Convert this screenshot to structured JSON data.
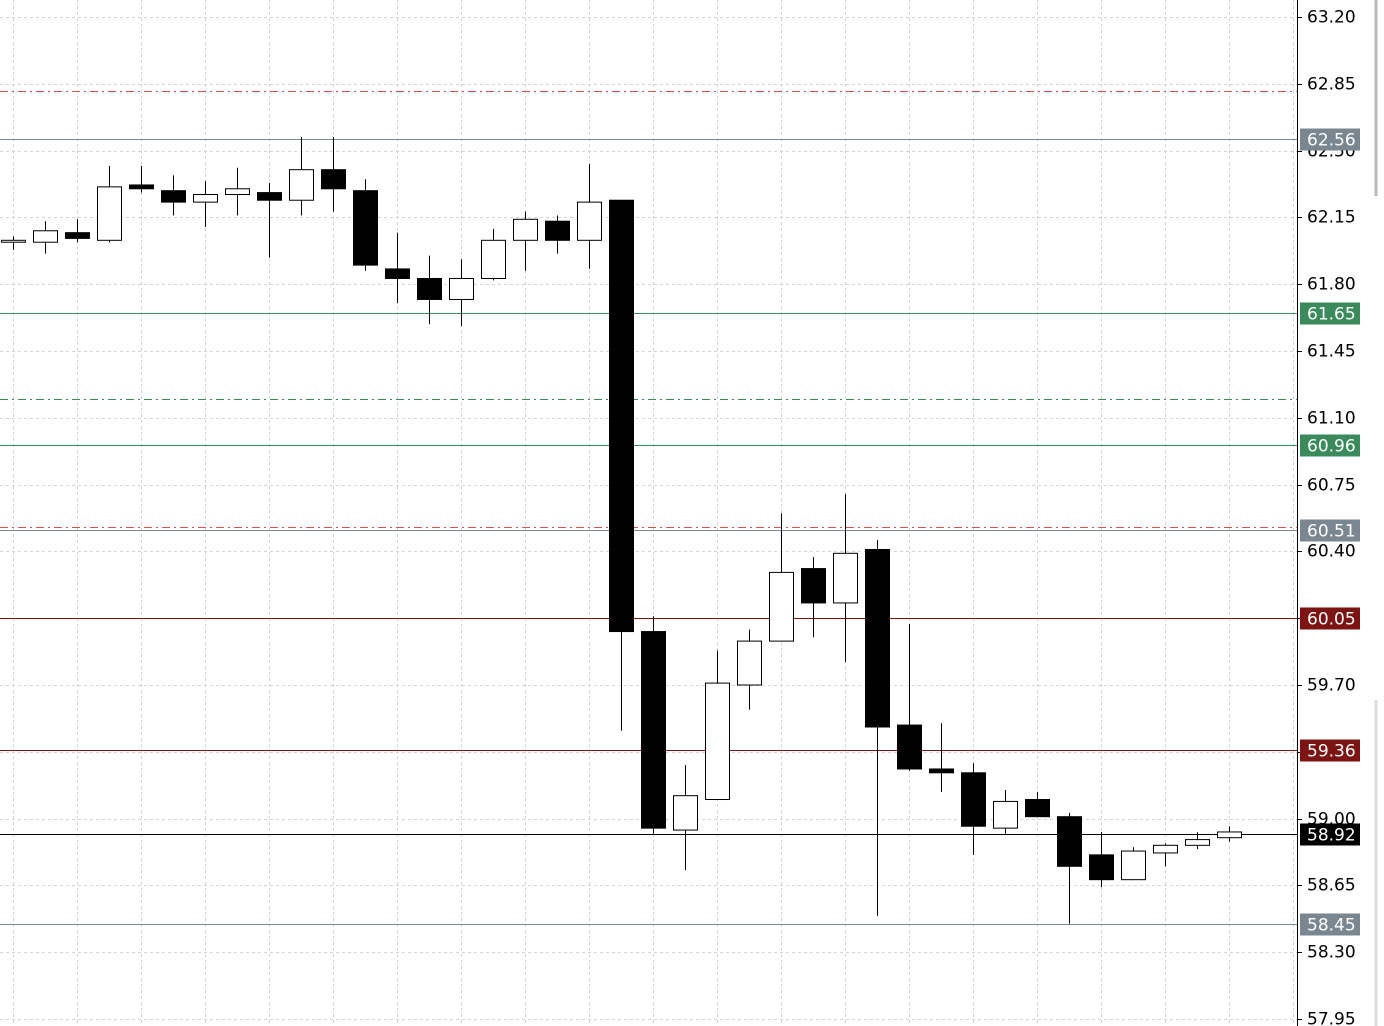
{
  "chart_data": {
    "type": "candlestick",
    "open": [
      62.02,
      62.02,
      62.07,
      62.03,
      62.32,
      62.29,
      62.23,
      62.27,
      62.28,
      62.24,
      62.4,
      62.29,
      61.88,
      61.83,
      61.72,
      61.83,
      62.03,
      62.13,
      62.03,
      62.24,
      59.98,
      58.94,
      59.1,
      59.7,
      59.93,
      60.31,
      60.13,
      60.41,
      59.49,
      59.26,
      59.24,
      58.95,
      59.1,
      59.01,
      58.81,
      58.68,
      58.82,
      58.86,
      58.9
    ],
    "high": [
      62.05,
      62.13,
      62.14,
      62.42,
      62.42,
      62.37,
      62.34,
      62.41,
      62.33,
      62.57,
      62.57,
      62.35,
      62.07,
      61.95,
      61.93,
      62.09,
      62.18,
      62.16,
      62.43,
      62.24,
      60.06,
      59.28,
      59.88,
      59.99,
      60.6,
      60.37,
      60.7,
      60.46,
      60.02,
      59.5,
      59.29,
      59.15,
      59.14,
      59.03,
      58.93,
      58.85,
      58.87,
      58.93,
      58.96
    ],
    "low": [
      61.98,
      61.96,
      62.02,
      62.02,
      62.28,
      62.16,
      62.1,
      62.16,
      61.94,
      62.16,
      62.18,
      61.87,
      61.7,
      61.59,
      61.58,
      61.82,
      61.87,
      61.96,
      61.88,
      59.46,
      58.92,
      58.73,
      59.1,
      59.57,
      59.93,
      59.95,
      59.82,
      58.49,
      59.25,
      59.14,
      58.81,
      58.92,
      59.01,
      58.45,
      58.64,
      58.68,
      58.75,
      58.84,
      58.88
    ],
    "close": [
      62.03,
      62.08,
      62.04,
      62.31,
      62.3,
      62.23,
      62.27,
      62.3,
      62.24,
      62.4,
      62.3,
      61.9,
      61.83,
      61.72,
      61.83,
      62.03,
      62.14,
      62.03,
      62.23,
      59.98,
      58.95,
      59.12,
      59.71,
      59.93,
      60.29,
      60.13,
      60.39,
      59.48,
      59.26,
      59.24,
      58.96,
      59.09,
      59.01,
      58.75,
      58.68,
      58.83,
      58.86,
      58.89,
      58.93
    ],
    "up_color": "#ffffff",
    "down_color": "#000000",
    "ylim": [
      57.95,
      63.2
    ],
    "yticks": [
      {
        "value": 63.2,
        "label": "63.20"
      },
      62.85,
      {
        "value": 62.5,
        "label": "62.50"
      },
      62.15,
      {
        "value": 61.8,
        "label": "61.80"
      },
      61.45,
      {
        "value": 61.1,
        "label": "61.10"
      },
      60.75,
      {
        "value": 60.4,
        "label": "60.40"
      },
      60.05,
      {
        "value": 59.7,
        "label": "59.70"
      },
      59.35,
      {
        "value": 59.0,
        "label": "59.00"
      },
      58.65,
      {
        "value": 58.3,
        "label": "58.30"
      },
      57.95
    ],
    "grid": true,
    "price_lines": [
      {
        "value": 62.56,
        "color": "#7a8791"
      },
      {
        "value": 61.65,
        "color": "#3a8a5c"
      },
      {
        "value": 60.96,
        "color": "#3a8a5c"
      },
      {
        "value": 60.51,
        "color": "#7a8791"
      },
      {
        "value": 60.05,
        "color": "#7d1414"
      },
      {
        "value": 59.36,
        "color": "#7d1414"
      },
      {
        "value": 58.92,
        "color": "#000000"
      },
      {
        "value": 58.45,
        "color": "#7a8791"
      }
    ],
    "marker_lines": [
      {
        "value": 62.81,
        "color": "#d9534f"
      },
      {
        "value": 61.2,
        "color": "#3a8a5c"
      },
      {
        "value": 60.53,
        "color": "#d9534f"
      }
    ]
  }
}
